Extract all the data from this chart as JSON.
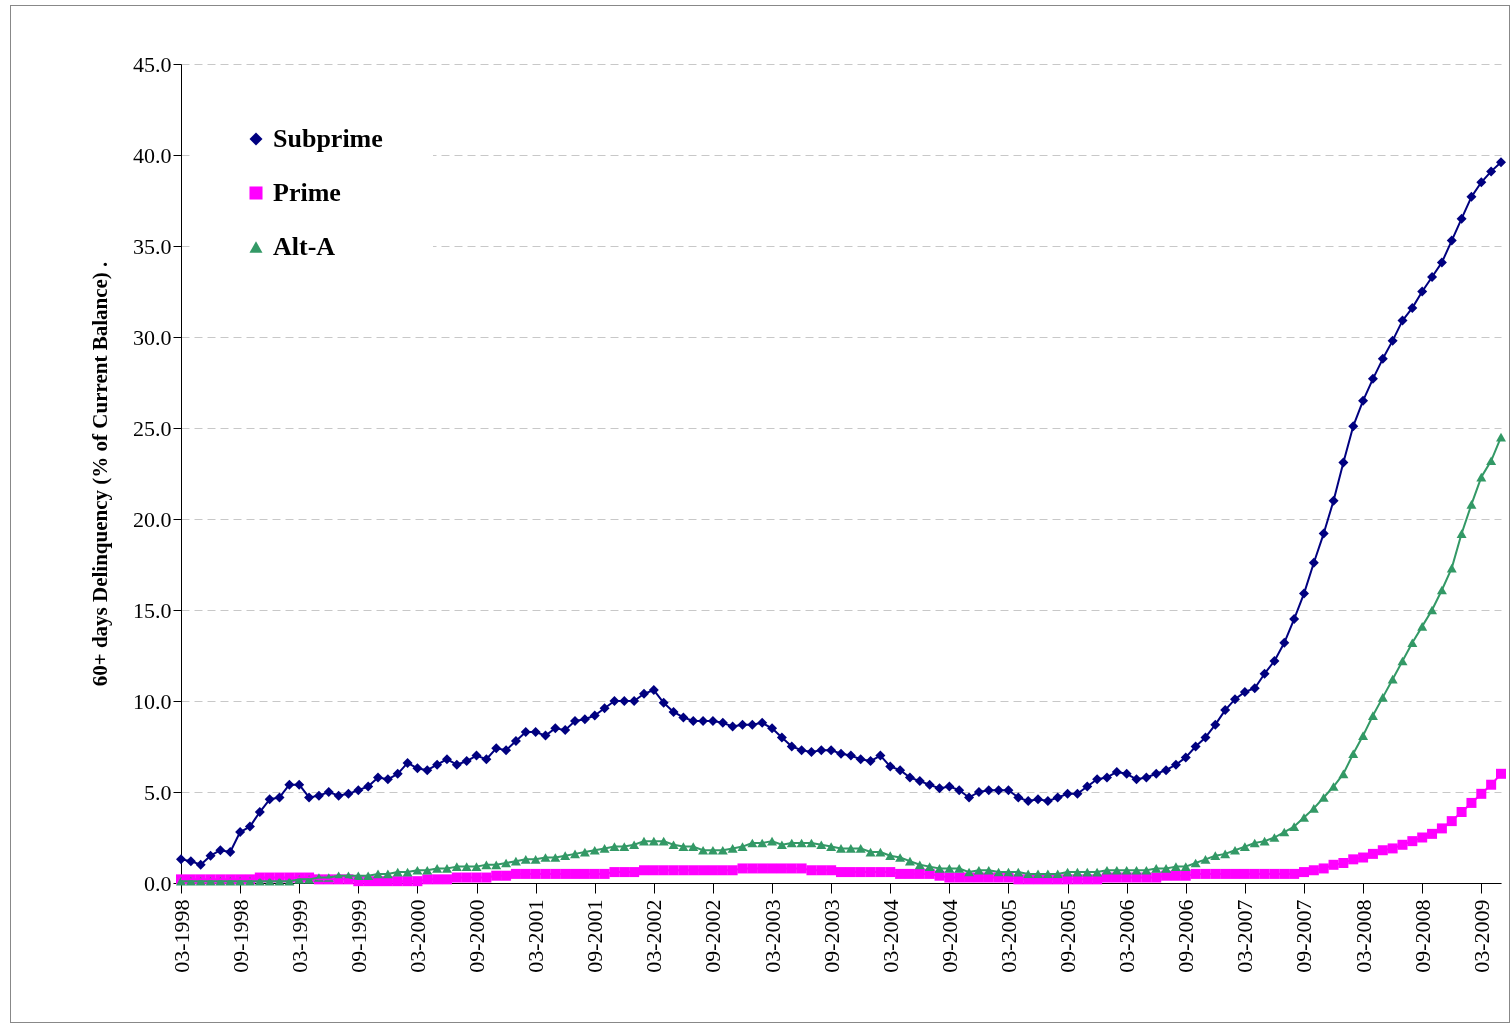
{
  "chart_data": {
    "type": "line",
    "ylabel": "60+ days Delinquency (% of Current Balance) .",
    "categories": [
      "03-1998",
      null,
      null,
      null,
      null,
      null,
      "09-1998",
      null,
      null,
      null,
      null,
      null,
      "03-1999",
      null,
      null,
      null,
      null,
      null,
      "09-1999",
      null,
      null,
      null,
      null,
      null,
      "03-2000",
      null,
      null,
      null,
      null,
      null,
      "09-2000",
      null,
      null,
      null,
      null,
      null,
      "03-2001",
      null,
      null,
      null,
      null,
      null,
      "09-2001",
      null,
      null,
      null,
      null,
      null,
      "03-2002",
      null,
      null,
      null,
      null,
      null,
      "09-2002",
      null,
      null,
      null,
      null,
      null,
      "03-2003",
      null,
      null,
      null,
      null,
      null,
      "09-2003",
      null,
      null,
      null,
      null,
      null,
      "03-2004",
      null,
      null,
      null,
      null,
      null,
      "09-2004",
      null,
      null,
      null,
      null,
      null,
      "03-2005",
      null,
      null,
      null,
      null,
      null,
      "09-2005",
      null,
      null,
      null,
      null,
      null,
      "03-2006",
      null,
      null,
      null,
      null,
      null,
      "09-2006",
      null,
      null,
      null,
      null,
      null,
      "03-2007",
      null,
      null,
      null,
      null,
      null,
      "09-2007",
      null,
      null,
      null,
      null,
      null,
      "03-2008",
      null,
      null,
      null,
      null,
      null,
      "09-2008",
      null,
      null,
      null,
      null,
      null,
      "03-2009",
      null,
      null
    ],
    "series": [
      {
        "name": "Subprime",
        "color": "#000080",
        "marker": "diamond",
        "values": [
          1.3,
          1.2,
          1.0,
          1.5,
          1.8,
          1.7,
          2.8,
          3.1,
          3.9,
          4.6,
          4.7,
          5.4,
          5.4,
          4.7,
          4.8,
          5.0,
          4.8,
          4.9,
          5.1,
          5.3,
          5.8,
          5.7,
          6.0,
          6.6,
          6.3,
          6.2,
          6.5,
          6.8,
          6.5,
          6.7,
          7.0,
          6.8,
          7.4,
          7.3,
          7.8,
          8.3,
          8.3,
          8.1,
          8.5,
          8.4,
          8.9,
          9.0,
          9.2,
          9.6,
          10.0,
          10.0,
          10.0,
          10.4,
          10.6,
          9.9,
          9.4,
          9.1,
          8.9,
          8.9,
          8.9,
          8.8,
          8.6,
          8.7,
          8.7,
          8.8,
          8.5,
          8.0,
          7.5,
          7.3,
          7.2,
          7.3,
          7.3,
          7.1,
          7.0,
          6.8,
          6.7,
          7.0,
          6.4,
          6.2,
          5.8,
          5.6,
          5.4,
          5.2,
          5.3,
          5.1,
          4.7,
          5.0,
          5.1,
          5.1,
          5.1,
          4.7,
          4.5,
          4.6,
          4.5,
          4.7,
          4.9,
          4.9,
          5.3,
          5.7,
          5.8,
          6.1,
          6.0,
          5.7,
          5.8,
          6.0,
          6.2,
          6.5,
          6.9,
          7.5,
          8.0,
          8.7,
          9.5,
          10.1,
          10.5,
          10.7,
          11.5,
          12.2,
          13.2,
          14.5,
          15.9,
          17.6,
          19.2,
          21.0,
          23.1,
          25.1,
          26.5,
          27.7,
          28.8,
          29.8,
          30.9,
          31.6,
          32.5,
          33.3,
          34.1,
          35.3,
          36.5,
          37.7,
          38.5,
          39.1,
          39.6
        ]
      },
      {
        "name": "Prime",
        "color": "#ff00ff",
        "marker": "square",
        "values": [
          0.2,
          0.2,
          0.2,
          0.2,
          0.2,
          0.2,
          0.2,
          0.2,
          0.3,
          0.3,
          0.3,
          0.3,
          0.3,
          0.3,
          0.2,
          0.2,
          0.2,
          0.2,
          0.1,
          0.1,
          0.1,
          0.1,
          0.1,
          0.1,
          0.1,
          0.2,
          0.2,
          0.2,
          0.3,
          0.3,
          0.3,
          0.3,
          0.4,
          0.4,
          0.5,
          0.5,
          0.5,
          0.5,
          0.5,
          0.5,
          0.5,
          0.5,
          0.5,
          0.5,
          0.6,
          0.6,
          0.6,
          0.7,
          0.7,
          0.7,
          0.7,
          0.7,
          0.7,
          0.7,
          0.7,
          0.7,
          0.7,
          0.8,
          0.8,
          0.8,
          0.8,
          0.8,
          0.8,
          0.8,
          0.7,
          0.7,
          0.7,
          0.6,
          0.6,
          0.6,
          0.6,
          0.6,
          0.6,
          0.5,
          0.5,
          0.5,
          0.5,
          0.4,
          0.3,
          0.3,
          0.3,
          0.3,
          0.3,
          0.3,
          0.3,
          0.2,
          0.2,
          0.2,
          0.2,
          0.2,
          0.2,
          0.2,
          0.2,
          0.2,
          0.3,
          0.3,
          0.3,
          0.3,
          0.3,
          0.3,
          0.4,
          0.4,
          0.4,
          0.5,
          0.5,
          0.5,
          0.5,
          0.5,
          0.5,
          0.5,
          0.5,
          0.5,
          0.5,
          0.5,
          0.6,
          0.7,
          0.8,
          1.0,
          1.1,
          1.3,
          1.4,
          1.6,
          1.8,
          1.9,
          2.1,
          2.3,
          2.5,
          2.7,
          3.0,
          3.4,
          3.9,
          4.4,
          4.9,
          5.4,
          6.0
        ]
      },
      {
        "name": "Alt-A",
        "color": "#339966",
        "marker": "triangle",
        "values": [
          0.1,
          0.1,
          0.1,
          0.1,
          0.1,
          0.1,
          0.1,
          0.1,
          0.1,
          0.1,
          0.1,
          0.1,
          0.2,
          0.2,
          0.3,
          0.3,
          0.4,
          0.4,
          0.4,
          0.4,
          0.5,
          0.5,
          0.6,
          0.6,
          0.7,
          0.7,
          0.8,
          0.8,
          0.9,
          0.9,
          0.9,
          1.0,
          1.0,
          1.1,
          1.2,
          1.3,
          1.3,
          1.4,
          1.4,
          1.5,
          1.6,
          1.7,
          1.8,
          1.9,
          2.0,
          2.0,
          2.1,
          2.3,
          2.3,
          2.3,
          2.1,
          2.0,
          2.0,
          1.8,
          1.8,
          1.8,
          1.9,
          2.0,
          2.2,
          2.2,
          2.3,
          2.1,
          2.2,
          2.2,
          2.2,
          2.1,
          2.0,
          1.9,
          1.9,
          1.9,
          1.7,
          1.7,
          1.5,
          1.4,
          1.2,
          1.0,
          0.9,
          0.8,
          0.8,
          0.8,
          0.6,
          0.7,
          0.7,
          0.6,
          0.6,
          0.6,
          0.5,
          0.5,
          0.5,
          0.5,
          0.6,
          0.6,
          0.6,
          0.6,
          0.7,
          0.7,
          0.7,
          0.7,
          0.7,
          0.8,
          0.8,
          0.9,
          0.9,
          1.1,
          1.3,
          1.5,
          1.6,
          1.8,
          2.0,
          2.2,
          2.3,
          2.5,
          2.8,
          3.1,
          3.6,
          4.1,
          4.7,
          5.3,
          6.0,
          7.1,
          8.1,
          9.2,
          10.2,
          11.2,
          12.2,
          13.2,
          14.1,
          15.0,
          16.1,
          17.3,
          19.2,
          20.8,
          22.3,
          23.2,
          24.5
        ]
      }
    ],
    "ylim": [
      0,
      45
    ],
    "yticks": [
      {
        "value": 0,
        "label": "0.0"
      },
      {
        "value": 5,
        "label": "5.0"
      },
      {
        "value": 10,
        "label": "10.0"
      },
      {
        "value": 15,
        "label": "15.0"
      },
      {
        "value": 20,
        "label": "20.0"
      },
      {
        "value": 25,
        "label": "25.0"
      },
      {
        "value": 30,
        "label": "30.0"
      },
      {
        "value": 35,
        "label": "35.0"
      },
      {
        "value": 40,
        "label": "40.0"
      },
      {
        "value": 45,
        "label": "45.0"
      }
    ],
    "grid": "y",
    "legend": "top left",
    "line_style": "solid"
  }
}
